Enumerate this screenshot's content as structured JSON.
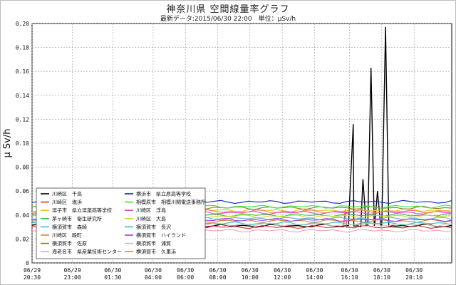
{
  "chart_data": {
    "type": "line",
    "title": "神奈川県 空間線量率グラフ",
    "subtitle": "最新データ:2015/06/30 22:00　単位：μSv/h",
    "ylabel": "μ Sv/h",
    "xlabel": "",
    "ylim": [
      0,
      0.2
    ],
    "yticks": [
      "0",
      "0.02",
      "0.04",
      "0.06",
      "0.08",
      "0.10",
      "0.12",
      "0.14",
      "0.16",
      "0.18",
      "0.20"
    ],
    "ytick_values": [
      0,
      0.02,
      0.04,
      0.06,
      0.08,
      0.1,
      0.12,
      0.14,
      0.16,
      0.18,
      0.2
    ],
    "xlim_hours": [
      0,
      26
    ],
    "xticks": [
      {
        "date": "06/29",
        "time": "20:30",
        "h": 0
      },
      {
        "date": "06/29",
        "time": "23:00",
        "h": 2.5
      },
      {
        "date": "06/30",
        "time": "01:30",
        "h": 5
      },
      {
        "date": "06/30",
        "time": "04:00",
        "h": 7.5
      },
      {
        "date": "06/30",
        "time": "06:00",
        "h": 9.5
      },
      {
        "date": "06/30",
        "time": "08:00",
        "h": 11.5
      },
      {
        "date": "06/30",
        "time": "10:00",
        "h": 13.5
      },
      {
        "date": "06/30",
        "time": "12:00",
        "h": 15.5
      },
      {
        "date": "06/30",
        "time": "14:00",
        "h": 17.5
      },
      {
        "date": "06/30",
        "time": "16:10",
        "h": 19.67
      },
      {
        "date": "06/30",
        "time": "18:10",
        "h": 21.67
      },
      {
        "date": "06/30",
        "time": "20:10",
        "h": 23.67
      }
    ],
    "grid": true,
    "legend_position": "bottom-left",
    "series": [
      {
        "name": "川崎区　千鳥",
        "color": "#000000",
        "base": 0.031,
        "spikes": [
          [
            19.6,
            0.031
          ],
          [
            19.9,
            0.116
          ],
          [
            20.2,
            0.031
          ],
          [
            20.5,
            0.07
          ],
          [
            20.7,
            0.031
          ],
          [
            21.0,
            0.163
          ],
          [
            21.2,
            0.031
          ],
          [
            21.4,
            0.06
          ],
          [
            21.6,
            0.031
          ],
          [
            21.9,
            0.197
          ],
          [
            22.3,
            0.031
          ]
        ]
      },
      {
        "name": "川崎区　塩浜",
        "color": "#e03020",
        "base": 0.03,
        "spikes": [
          [
            19.3,
            0.03
          ],
          [
            19.4,
            0.045
          ],
          [
            19.5,
            0.03
          ]
        ]
      },
      {
        "name": "逗子市　県立逗葉高等学校",
        "color": "#f0c020",
        "base": 0.044
      },
      {
        "name": "茅ヶ崎市　衛生研究所",
        "color": "#30c040",
        "base": 0.04
      },
      {
        "name": "横須賀市　森崎",
        "color": "#60a8e0",
        "base": 0.037
      },
      {
        "name": "川崎区　殿町",
        "color": "#e08040",
        "base": 0.035
      },
      {
        "name": "横須賀市　佐原",
        "color": "#808020",
        "base": 0.046
      },
      {
        "name": "海老名市　県産業技術センター",
        "color": "#f0a0c0",
        "base": 0.027
      },
      {
        "name": "横浜市　県立原高等学校",
        "color": "#1020c0",
        "base": 0.051
      },
      {
        "name": "相模原市　相模川関電送事務所",
        "color": "#40e040",
        "base": 0.047
      },
      {
        "name": "川崎区　浮島",
        "color": "#e040e0",
        "base": 0.042
      },
      {
        "name": "川崎区　大島",
        "color": "#c0e020",
        "base": 0.039
      },
      {
        "name": "横須賀市　長沢",
        "color": "#30c0c0",
        "base": 0.033
      },
      {
        "name": "横須賀市　ハイランド",
        "color": "#a040e0",
        "base": 0.036
      },
      {
        "name": "横須賀市　浦賀",
        "color": "#c0c0c0",
        "base": 0.032
      },
      {
        "name": "横須賀市　久里浜",
        "color": "#f08060",
        "base": 0.043
      }
    ]
  }
}
